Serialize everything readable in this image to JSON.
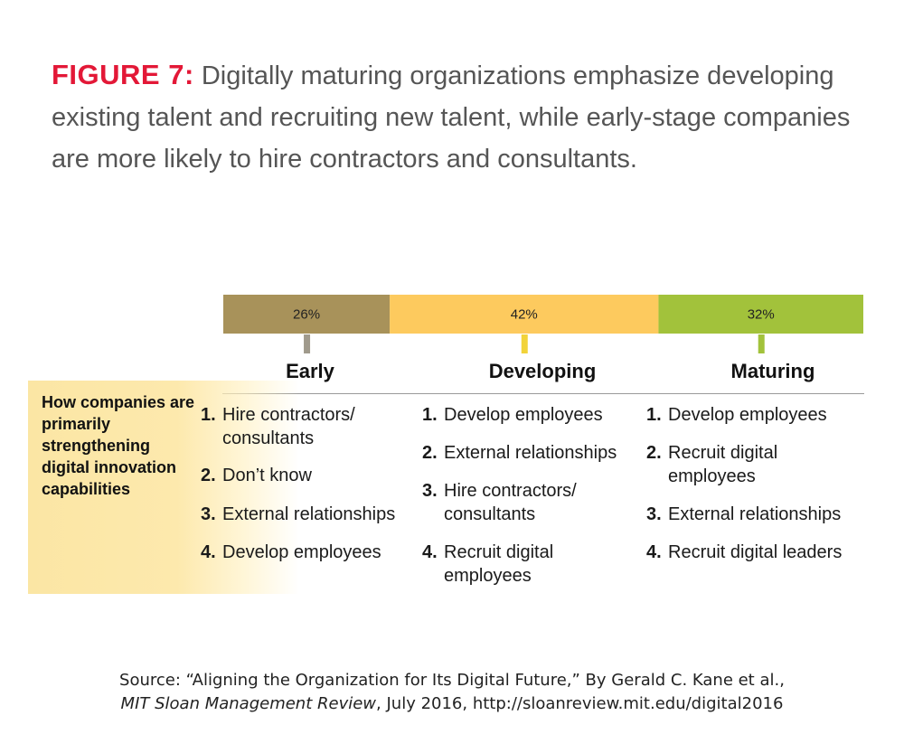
{
  "title": {
    "figure_label": "FIGURE 7:",
    "text": "Digitally maturing organizations emphasize developing existing talent and recruiting new talent, while early-stage companies are more likely to hire contractors and consultants."
  },
  "row_label": "How companies are primarily strengthening digital innovation capabilities",
  "chart_data": {
    "type": "bar",
    "orientation": "horizontal-stacked",
    "title": "FIGURE 7: Digitally maturing organizations emphasize developing existing talent and recruiting new talent, while early-stage companies are more likely to hire contractors and consultants.",
    "categories": [
      "Early",
      "Developing",
      "Maturing"
    ],
    "values": [
      26,
      42,
      32
    ],
    "value_labels": [
      "26%",
      "42%",
      "32%"
    ],
    "unit": "%",
    "xlim": [
      0,
      100
    ],
    "colors": [
      "#a8925a",
      "#fdca5e",
      "#a2c23b"
    ],
    "marker_colors": [
      "#a09a8c",
      "#f2d33a",
      "#a2c23b"
    ]
  },
  "stages": [
    {
      "name": "Early",
      "items": [
        {
          "rank": "1.",
          "text": "Hire contractors/ consultants"
        },
        {
          "rank": "2.",
          "text": "Don’t know"
        },
        {
          "rank": "3.",
          "text": "External relationships"
        },
        {
          "rank": "4.",
          "text": "Develop employees"
        }
      ]
    },
    {
      "name": "Developing",
      "items": [
        {
          "rank": "1.",
          "text": "Develop employees"
        },
        {
          "rank": "2.",
          "text": "External relationships"
        },
        {
          "rank": "3.",
          "text": "Hire contractors/ consultants"
        },
        {
          "rank": "4.",
          "text": "Recruit digital employees"
        }
      ]
    },
    {
      "name": "Maturing",
      "items": [
        {
          "rank": "1.",
          "text": "Develop employees"
        },
        {
          "rank": "2.",
          "text": "Recruit digital employees"
        },
        {
          "rank": "3.",
          "text": "External relationships"
        },
        {
          "rank": "4.",
          "text": "Recruit digital leaders"
        }
      ]
    }
  ],
  "source": {
    "prefix": "Source: “Aligning the Organization for Its Digital Future,” By Gerald C. Kane et al.,",
    "journal": "MIT Sloan Management Review",
    "suffix": ", July 2016, http://sloanreview.mit.edu/digital2016"
  }
}
